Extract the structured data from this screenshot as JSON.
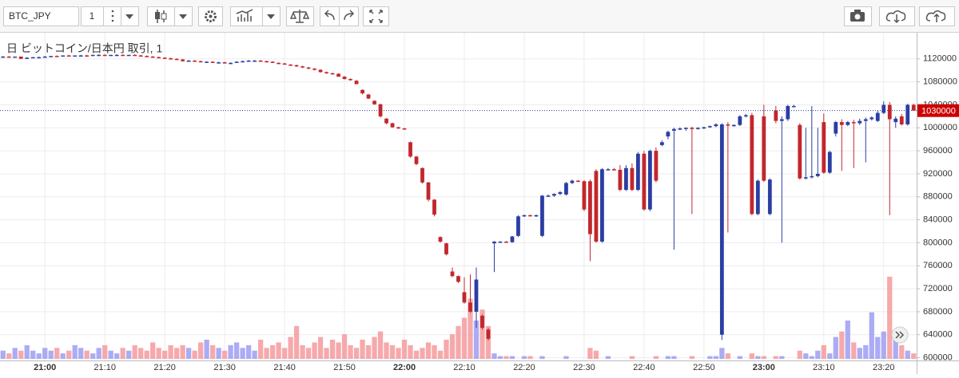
{
  "toolbar": {
    "symbol": "BTC_JPY",
    "interval": "1"
  },
  "chart_data": {
    "type": "candlestick",
    "title": "日 ビットコイン/日本円 取引, 1",
    "categories": [
      null,
      null,
      null,
      null,
      null,
      null,
      null,
      "21:00",
      null,
      null,
      null,
      null,
      null,
      null,
      null,
      null,
      null,
      "21:10",
      null,
      null,
      null,
      null,
      null,
      null,
      null,
      null,
      null,
      "21:20",
      null,
      null,
      null,
      null,
      null,
      null,
      null,
      null,
      null,
      "21:30",
      null,
      null,
      null,
      null,
      null,
      null,
      null,
      null,
      null,
      "21:40",
      null,
      null,
      null,
      null,
      null,
      null,
      null,
      null,
      null,
      "21:50",
      null,
      null,
      null,
      null,
      null,
      null,
      null,
      null,
      null,
      "22:00",
      null,
      null,
      null,
      null,
      null,
      null,
      null,
      null,
      null,
      "22:10",
      null,
      null,
      null,
      null,
      null,
      null,
      null,
      null,
      null,
      "22:20",
      null,
      null,
      null,
      null,
      null,
      null,
      null,
      null,
      null,
      "22:30",
      null,
      null,
      null,
      null,
      null,
      null,
      null,
      null,
      null,
      "22:40",
      null,
      null,
      null,
      null,
      null,
      null,
      null,
      null,
      null,
      "22:50",
      null,
      null,
      null,
      null,
      null,
      null,
      null,
      null,
      null,
      "23:00",
      null,
      null,
      null,
      null,
      null,
      null,
      null,
      null,
      null,
      "23:10",
      null,
      null,
      null,
      null,
      null,
      null,
      null,
      null,
      null,
      "23:20",
      null,
      null,
      null,
      null,
      null
    ],
    "ohlc": [
      [
        1124000,
        1125000,
        1123000,
        1124000
      ],
      [
        1124000,
        1125000,
        1123000,
        1123000
      ],
      [
        1123000,
        1124000,
        1122000,
        1124000
      ],
      [
        1124000,
        1124000,
        1120000,
        1120000
      ],
      [
        1120000,
        1123000,
        1120000,
        1122000
      ],
      [
        1122000,
        1123000,
        1121000,
        1123000
      ],
      [
        1123000,
        1124000,
        1122000,
        1123000
      ],
      [
        1123000,
        1125000,
        1123000,
        1124000
      ],
      [
        1124000,
        1125000,
        1123000,
        1125000
      ],
      [
        1125000,
        1126000,
        1124000,
        1124000
      ],
      [
        1124000,
        1126000,
        1124000,
        1126000
      ],
      [
        1126000,
        1127000,
        1125000,
        1125000
      ],
      [
        1125000,
        1126000,
        1124000,
        1126000
      ],
      [
        1126000,
        1127000,
        1125000,
        1126000
      ],
      [
        1126000,
        1127000,
        1125000,
        1125000
      ],
      [
        1125000,
        1127000,
        1125000,
        1127000
      ],
      [
        1127000,
        1128000,
        1126000,
        1127000
      ],
      [
        1127000,
        1128000,
        1126000,
        1126000
      ],
      [
        1126000,
        1127000,
        1125000,
        1127000
      ],
      [
        1127000,
        1128000,
        1126000,
        1127000
      ],
      [
        1127000,
        1128000,
        1126000,
        1126000
      ],
      [
        1126000,
        1127000,
        1125000,
        1127000
      ],
      [
        1127000,
        1128000,
        1126000,
        1126000
      ],
      [
        1126000,
        1127000,
        1124000,
        1125000
      ],
      [
        1125000,
        1126000,
        1123000,
        1124000
      ],
      [
        1124000,
        1125000,
        1122000,
        1123000
      ],
      [
        1123000,
        1124000,
        1121000,
        1122000
      ],
      [
        1122000,
        1123000,
        1120000,
        1121000
      ],
      [
        1121000,
        1122000,
        1119000,
        1120000
      ],
      [
        1120000,
        1121000,
        1118000,
        1119000
      ],
      [
        1119000,
        1120000,
        1115000,
        1116000
      ],
      [
        1116000,
        1118000,
        1115000,
        1117000
      ],
      [
        1117000,
        1118000,
        1115000,
        1116000
      ],
      [
        1116000,
        1117000,
        1114000,
        1115000
      ],
      [
        1115000,
        1116000,
        1114000,
        1115000
      ],
      [
        1115000,
        1116000,
        1113000,
        1114000
      ],
      [
        1114000,
        1115000,
        1113000,
        1114000
      ],
      [
        1114000,
        1115000,
        1112000,
        1113000
      ],
      [
        1113000,
        1114000,
        1112000,
        1113000
      ],
      [
        1113000,
        1116000,
        1113000,
        1115000
      ],
      [
        1115000,
        1117000,
        1114000,
        1116000
      ],
      [
        1116000,
        1118000,
        1115000,
        1117000
      ],
      [
        1117000,
        1118000,
        1116000,
        1117000
      ],
      [
        1117000,
        1118000,
        1116000,
        1116000
      ],
      [
        1116000,
        1117000,
        1114000,
        1115000
      ],
      [
        1115000,
        1116000,
        1113000,
        1113000
      ],
      [
        1113000,
        1114000,
        1111000,
        1112000
      ],
      [
        1112000,
        1113000,
        1110000,
        1110000
      ],
      [
        1110000,
        1111000,
        1108000,
        1109000
      ],
      [
        1109000,
        1110000,
        1106000,
        1107000
      ],
      [
        1107000,
        1108000,
        1104000,
        1105000
      ],
      [
        1105000,
        1106000,
        1102000,
        1103000
      ],
      [
        1103000,
        1104000,
        1100000,
        1101000
      ],
      [
        1101000,
        1102000,
        1096000,
        1097000
      ],
      [
        1097000,
        1098000,
        1094000,
        1095000
      ],
      [
        1095000,
        1096000,
        1093000,
        1094000
      ],
      [
        1094000,
        1095000,
        1089000,
        1089000
      ],
      [
        1089000,
        1090000,
        1084000,
        1085000
      ],
      [
        1085000,
        1086000,
        1082000,
        1083000
      ],
      [
        1082000,
        1083000,
        1076000,
        1076000
      ],
      [
        1066000,
        1067000,
        1058000,
        1060000
      ],
      [
        1058000,
        1059000,
        1050000,
        1051000
      ],
      [
        1047000,
        1048000,
        1040000,
        1041000
      ],
      [
        1041000,
        1042000,
        1018000,
        1020000
      ],
      [
        1016000,
        1017000,
        1006000,
        1008000
      ],
      [
        1008000,
        1009000,
        1000000,
        1001000
      ],
      [
        1001000,
        1002000,
        998000,
        999000
      ],
      [
        999000,
        1000000,
        997000,
        998000
      ],
      [
        975000,
        976000,
        948000,
        950000
      ],
      [
        950000,
        951000,
        935000,
        937000
      ],
      [
        930000,
        931000,
        903000,
        905000
      ],
      [
        905000,
        906000,
        872000,
        875000
      ],
      [
        875000,
        876000,
        846000,
        849000
      ],
      [
        810000,
        811000,
        800000,
        802000
      ],
      [
        799000,
        800000,
        778000,
        780000
      ],
      [
        750000,
        757000,
        740000,
        742000
      ],
      [
        742000,
        743000,
        730000,
        732000
      ],
      [
        714000,
        740000,
        694000,
        696000
      ],
      [
        696000,
        745000,
        678000,
        680000
      ],
      [
        680000,
        757000,
        652000,
        736000
      ],
      [
        673000,
        675000,
        649000,
        652000
      ],
      [
        649000,
        652000,
        630000,
        633000
      ],
      [
        799000,
        803000,
        749000,
        802000
      ],
      [
        802000,
        803000,
        801000,
        802000
      ],
      [
        802000,
        803000,
        800000,
        801000
      ],
      [
        801000,
        812000,
        800000,
        811000
      ],
      [
        812000,
        848000,
        810000,
        846000
      ],
      [
        846000,
        849000,
        845000,
        848000
      ],
      [
        848000,
        849000,
        846000,
        847000
      ],
      [
        847000,
        849000,
        845000,
        848000
      ],
      [
        812000,
        883000,
        810000,
        882000
      ],
      [
        882000,
        884000,
        880000,
        882000
      ],
      [
        882000,
        886000,
        880000,
        885000
      ],
      [
        885000,
        890000,
        883000,
        888000
      ],
      [
        884000,
        906000,
        882000,
        904000
      ],
      [
        904000,
        910000,
        902000,
        908000
      ],
      [
        908000,
        909000,
        906000,
        907000
      ],
      [
        907000,
        909000,
        855000,
        858000
      ],
      [
        907000,
        910000,
        768000,
        815000
      ],
      [
        925000,
        928000,
        800000,
        802000
      ],
      [
        802000,
        930000,
        800000,
        928000
      ],
      [
        928000,
        930000,
        926000,
        928000
      ],
      [
        928000,
        930000,
        926000,
        927000
      ],
      [
        927000,
        935000,
        890000,
        892000
      ],
      [
        892000,
        935000,
        890000,
        930000
      ],
      [
        930000,
        938000,
        890000,
        892000
      ],
      [
        892000,
        958000,
        890000,
        955000
      ],
      [
        955000,
        960000,
        856000,
        858000
      ],
      [
        858000,
        962000,
        855000,
        960000
      ],
      [
        960000,
        966000,
        905000,
        908000
      ],
      [
        970000,
        978000,
        968000,
        975000
      ],
      [
        985000,
        995000,
        980000,
        993000
      ],
      [
        995000,
        1000000,
        788000,
        998000
      ],
      [
        998000,
        1001000,
        996000,
        999000
      ],
      [
        999000,
        1001000,
        995000,
        1000000
      ],
      [
        1000000,
        1002000,
        850000,
        999000
      ],
      [
        999000,
        1001000,
        997000,
        1000000
      ],
      [
        1000000,
        1002000,
        998000,
        1001000
      ],
      [
        1001000,
        1004000,
        1000000,
        1003000
      ],
      [
        1003000,
        1008000,
        1001000,
        1006000
      ],
      [
        640000,
        1008000,
        631000,
        1006000
      ],
      [
        1006000,
        1010000,
        818000,
        1004000
      ],
      [
        1004000,
        1006000,
        1002000,
        1005000
      ],
      [
        1005000,
        1022000,
        1003000,
        1020000
      ],
      [
        1020000,
        1024000,
        1018000,
        1022000
      ],
      [
        1022000,
        1026000,
        848000,
        850000
      ],
      [
        850000,
        910000,
        848000,
        908000
      ],
      [
        1020000,
        1040000,
        906000,
        908000
      ],
      [
        850000,
        912000,
        848000,
        910000
      ],
      [
        1030000,
        1038000,
        1008000,
        1012000
      ],
      [
        1012000,
        1020000,
        800000,
        1015000
      ],
      [
        1015000,
        1040000,
        1012000,
        1038000
      ],
      [
        1038000,
        1040000,
        1036000,
        1038000
      ],
      [
        1005000,
        1008000,
        910000,
        912000
      ],
      [
        912000,
        1000000,
        910000,
        914000
      ],
      [
        914000,
        1038000,
        912000,
        916000
      ],
      [
        916000,
        1000000,
        914000,
        920000
      ],
      [
        1010000,
        1025000,
        920000,
        922000
      ],
      [
        922000,
        960000,
        920000,
        958000
      ],
      [
        990000,
        1012000,
        985000,
        1010000
      ],
      [
        1010000,
        1015000,
        925000,
        1005000
      ],
      [
        1005000,
        1012000,
        1003000,
        1010000
      ],
      [
        1010000,
        1014000,
        930000,
        1008000
      ],
      [
        1008000,
        1016000,
        1005000,
        1012000
      ],
      [
        1012000,
        1018000,
        940000,
        1015000
      ],
      [
        1015000,
        1020000,
        1013000,
        1018000
      ],
      [
        1012000,
        1030000,
        1010000,
        1026000
      ],
      [
        1026000,
        1046000,
        1024000,
        1040000
      ],
      [
        1040000,
        1045000,
        848000,
        1015000
      ],
      [
        1010000,
        1020000,
        1000000,
        1016000
      ],
      [
        1020000,
        1024000,
        1004000,
        1006000
      ],
      [
        1006000,
        1042000,
        1004000,
        1040000
      ],
      [
        1040000,
        1042000,
        1030000,
        1030000
      ]
    ],
    "volume": [
      3,
      2,
      4,
      3,
      5,
      3,
      2,
      4,
      3,
      4,
      2,
      3,
      5,
      4,
      3,
      2,
      4,
      5,
      3,
      2,
      4,
      3,
      5,
      4,
      3,
      6,
      4,
      3,
      5,
      4,
      5,
      4,
      3,
      6,
      7,
      5,
      4,
      3,
      5,
      6,
      4,
      5,
      3,
      7,
      4,
      5,
      6,
      4,
      8,
      12,
      5,
      4,
      6,
      8,
      4,
      7,
      6,
      9,
      5,
      4,
      7,
      5,
      8,
      10,
      6,
      5,
      4,
      7,
      5,
      3,
      4,
      6,
      5,
      3,
      7,
      9,
      12,
      15,
      22,
      14,
      18,
      12,
      2,
      1,
      1,
      1,
      0,
      1,
      1,
      0,
      1,
      0,
      0,
      0,
      1,
      0,
      0,
      0,
      4,
      3,
      0,
      1,
      0,
      0,
      0,
      1,
      0,
      0,
      0,
      1,
      0,
      1,
      1,
      0,
      0,
      1,
      0,
      0,
      1,
      1,
      4,
      2,
      0,
      1,
      0,
      2,
      1,
      1,
      0,
      1,
      1,
      0,
      0,
      3,
      2,
      1,
      3,
      5,
      2,
      8,
      10,
      14,
      6,
      4,
      5,
      17,
      8,
      10,
      30,
      8,
      5,
      3,
      2
    ],
    "up_color": "#2b3ea3",
    "down_color": "#c1272d",
    "volume_up_color": "#9c9ef2",
    "volume_down_color": "#f59a9c",
    "ylim": [
      598000,
      1160000
    ],
    "yticks": [
      600000,
      640000,
      680000,
      720000,
      760000,
      800000,
      840000,
      880000,
      920000,
      960000,
      1000000,
      1040000,
      1080000,
      1120000
    ],
    "last_price": 1030000,
    "last_price_color": "#cc0000",
    "grid": true
  }
}
